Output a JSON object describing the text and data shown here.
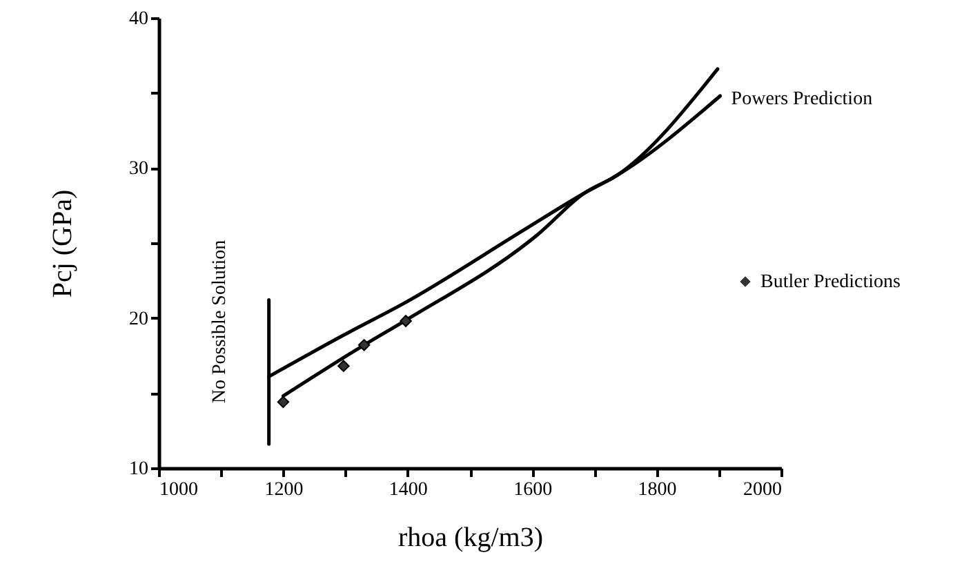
{
  "chart_data": {
    "type": "line",
    "xlabel": "rhoa (kg/m3)",
    "ylabel": "Pcj (GPa)",
    "xlim": [
      1000,
      2000
    ],
    "ylim": [
      10,
      40
    ],
    "xticks": [
      1000,
      {
        "value": 1100,
        "label": null
      },
      1200,
      {
        "value": 1300,
        "label": null
      },
      1400,
      {
        "value": 1500,
        "label": null
      },
      1600,
      {
        "value": 1700,
        "label": null
      },
      1800,
      {
        "value": 1900,
        "label": null
      },
      2000
    ],
    "yticks": [
      10,
      {
        "value": 15,
        "label": null
      },
      20,
      {
        "value": 25,
        "label": null
      },
      30,
      {
        "value": 35,
        "label": null
      },
      40
    ],
    "grid": false,
    "marker": "none",
    "line_style": "solid",
    "legend": "right",
    "series": [
      {
        "color": "#000000",
        "x": [
          1200,
          1330,
          1399,
          1610,
          1683,
          1736,
          1898
        ],
        "values": [
          14.8,
          18.2,
          19.9,
          25.6,
          28.3,
          29.5,
          36.6
        ]
      },
      {
        "name": "Powers Prediction",
        "color": "#000000",
        "x": [
          1177,
          1299,
          1395,
          1588,
          1683,
          1736,
          1902
        ],
        "values": [
          16.1,
          18.9,
          21.0,
          25.9,
          28.3,
          29.5,
          34.8
        ]
      },
      {
        "name": "Butler Predictions",
        "type": "scatter",
        "marker": "diamond",
        "color": "#333333",
        "x": [
          1200,
          1297,
          1330,
          1397
        ],
        "values": [
          14.4,
          16.8,
          18.2,
          19.8
        ]
      },
      {
        "color": "#000000",
        "x": [
          1177,
          1177
        ],
        "values": [
          11.6,
          21.2
        ]
      }
    ],
    "annotations": [
      "No Possible Solution"
    ]
  }
}
